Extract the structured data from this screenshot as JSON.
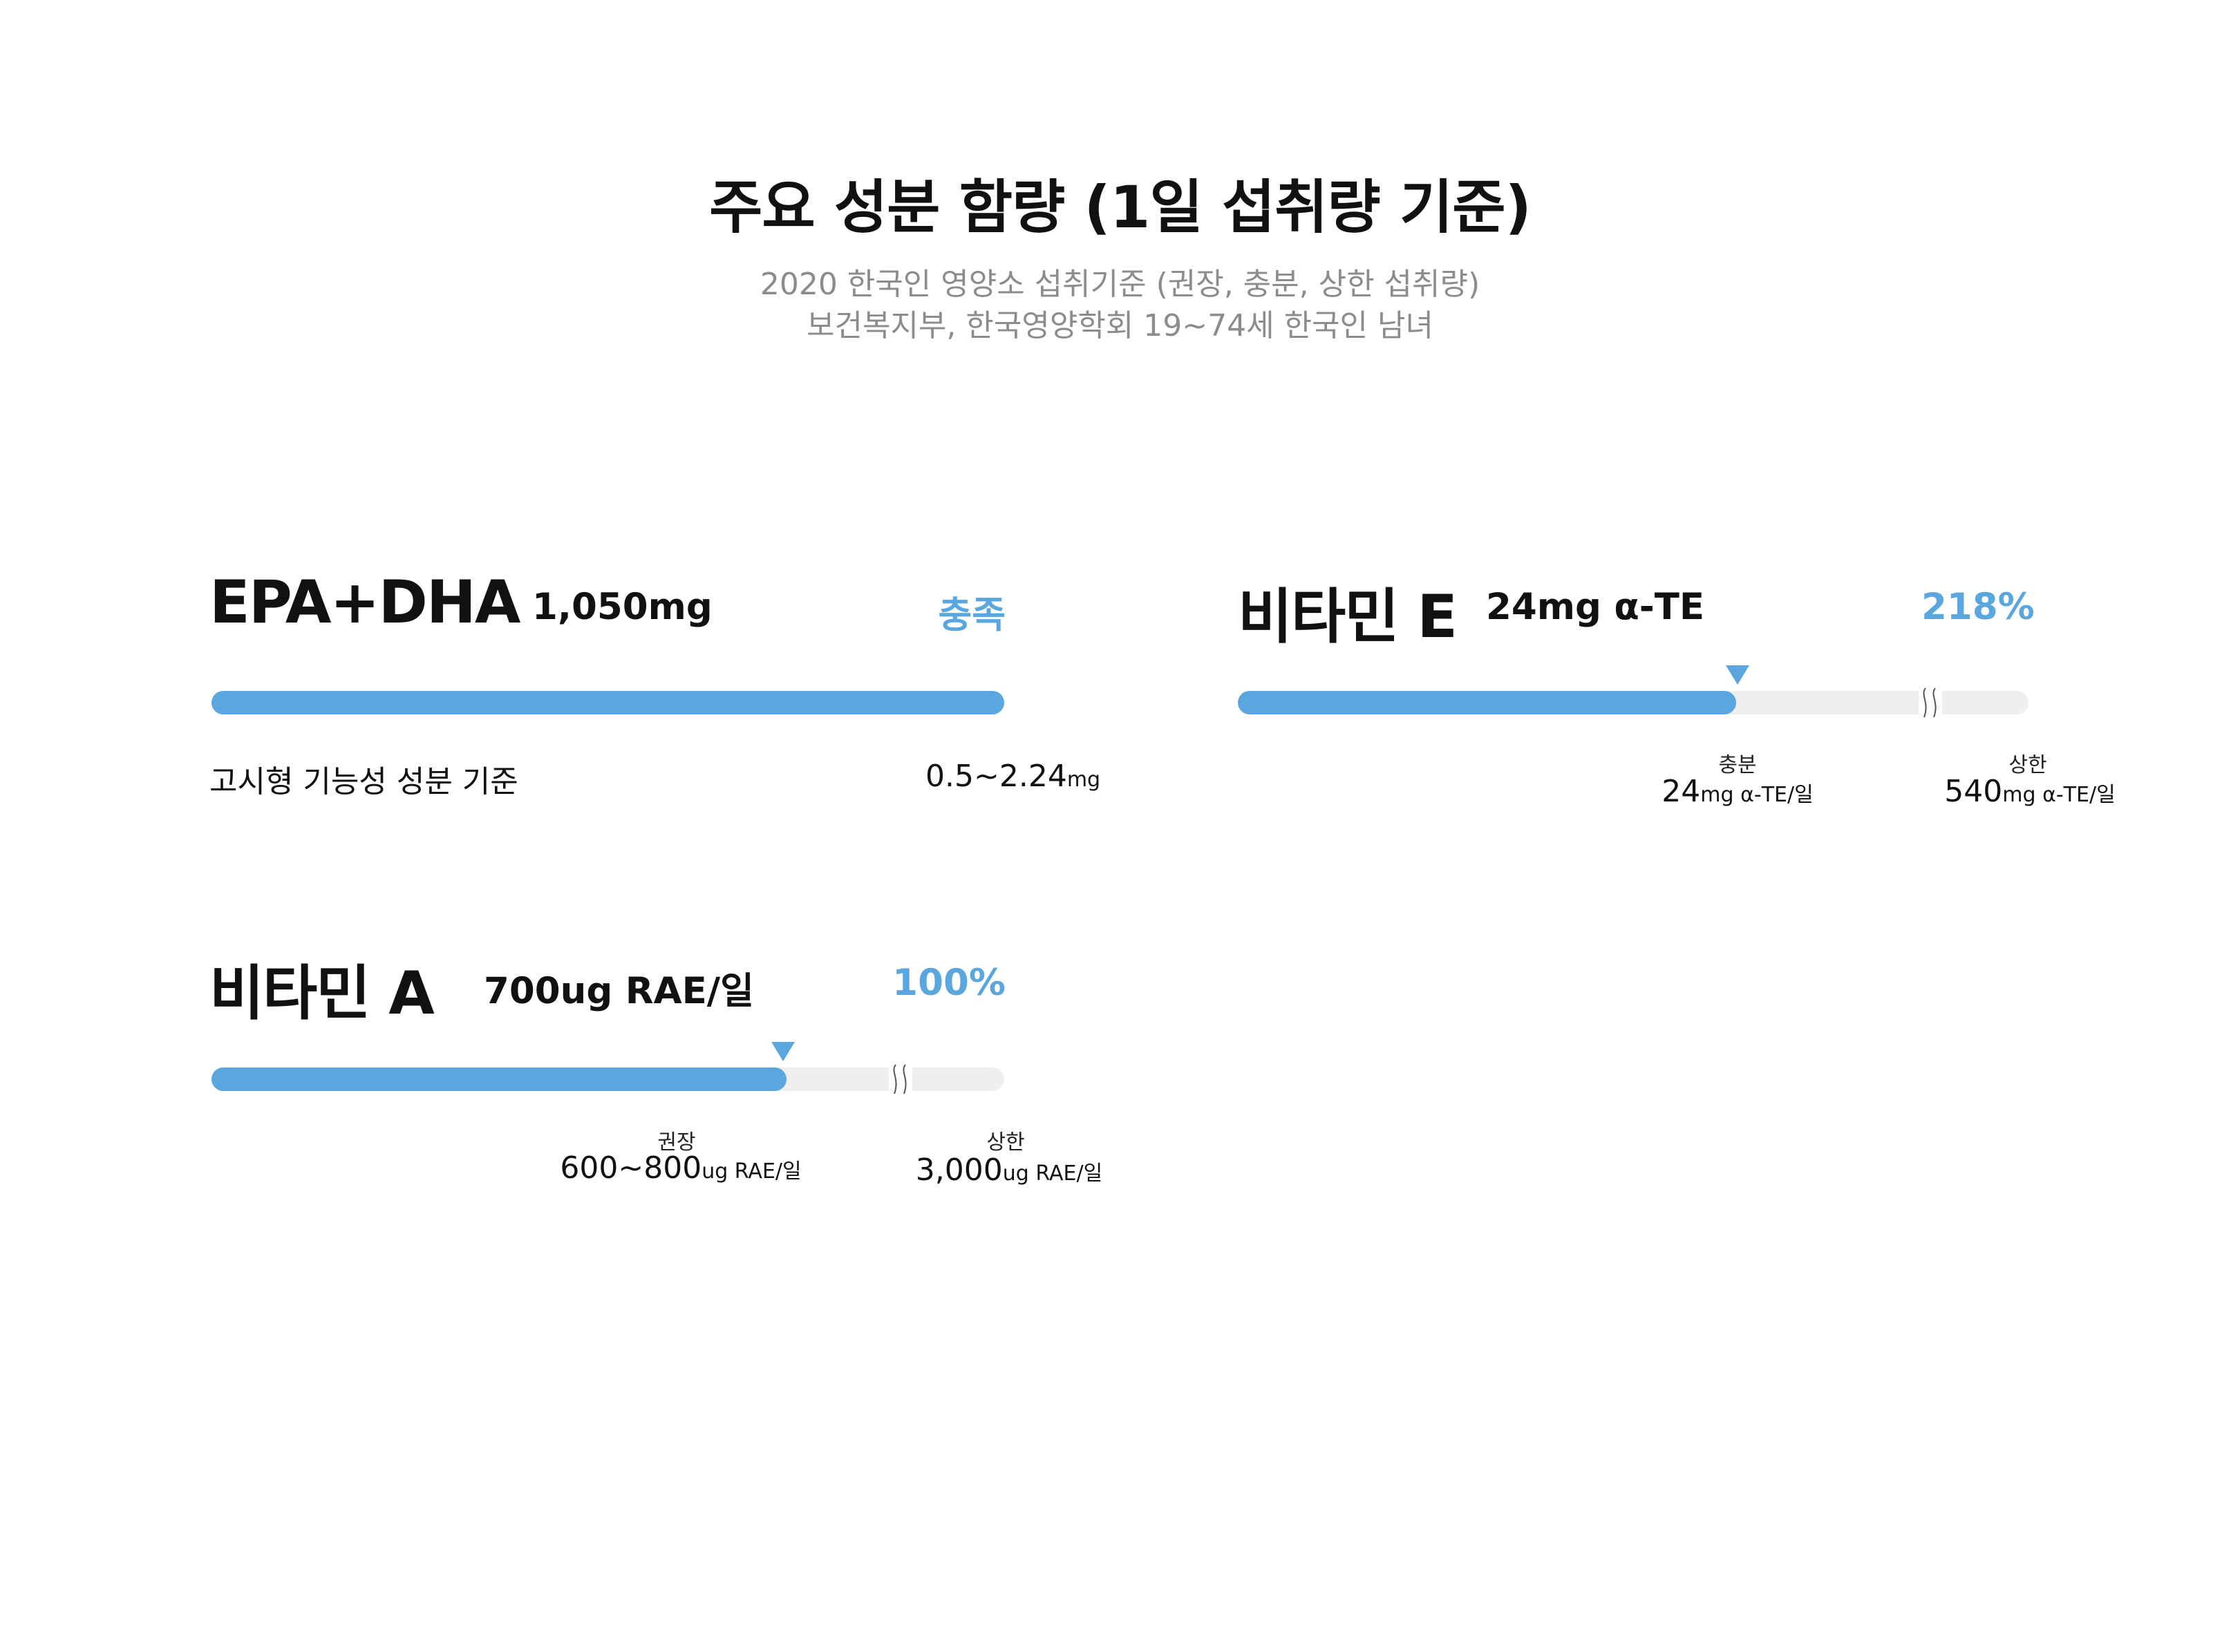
{
  "header": {
    "title": "주요 성분 함량 (1일 섭취량 기준)",
    "subtitle_line1": "2020 한국인 영양소 섭취기준 (권장, 충분, 상한 섭취량)",
    "subtitle_line2": "보건복지부, 한국영양학회  19~74세 한국인 남녀"
  },
  "colors": {
    "accent": "#5aa7e0",
    "track": "#efefef",
    "subtitle": "#8c8c8c"
  },
  "nutrients": {
    "epa_dha": {
      "name": "EPA+DHA",
      "amount": "1,050mg",
      "status": "충족",
      "fill_fraction": 1.0,
      "reference_label": "고시형 기능성 성분 기준",
      "reference_value": "0.5~2.24",
      "reference_unit": "mg"
    },
    "vitamin_e": {
      "name": "비타민 E",
      "amount": "24mg α-TE",
      "status": "218%",
      "fill_fraction": 0.63,
      "ref1_label": "충분",
      "ref1_value": "24",
      "ref1_unit": "mg α-TE/일",
      "ref2_label": "상한",
      "ref2_value": "540",
      "ref2_unit": "mg α-TE/일",
      "break_icon": "axis-break-icon"
    },
    "vitamin_a": {
      "name": "비타민 A",
      "amount": "700ug RAE/일",
      "status": "100%",
      "fill_fraction": 0.725,
      "ref1_label": "권장",
      "ref1_value": "600~800",
      "ref1_unit": "ug RAE/일",
      "ref2_label": "상한",
      "ref2_value": "3,000",
      "ref2_unit": "ug RAE/일",
      "break_icon": "axis-break-icon"
    }
  }
}
